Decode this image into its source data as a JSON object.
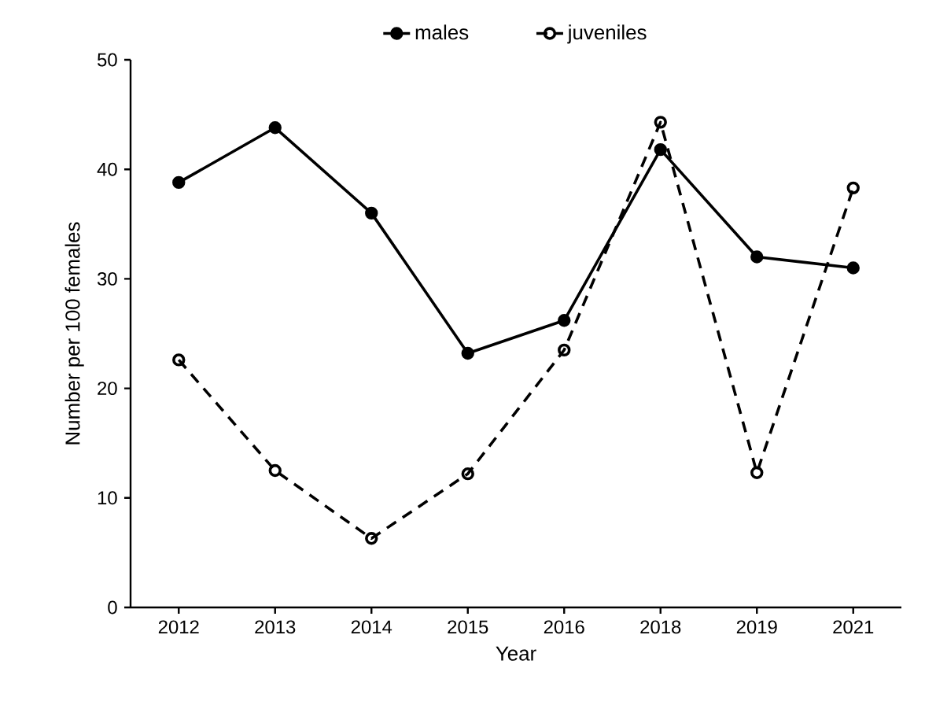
{
  "chart_data": {
    "type": "line",
    "xlabel": "Year",
    "ylabel": "Number per 100 females",
    "categories": [
      "2012",
      "2013",
      "2014",
      "2015",
      "2016",
      "2018",
      "2019",
      "2021"
    ],
    "series": [
      {
        "name": "males",
        "color": "#000000",
        "marker": "circle",
        "line_style": "solid",
        "values": [
          38.8,
          43.8,
          36,
          23.2,
          26.2,
          41.8,
          32,
          31
        ]
      },
      {
        "name": "juveniles",
        "color": "#000000",
        "marker": "open circle",
        "line_style": "dashed",
        "values": [
          22.6,
          12.5,
          6.3,
          12.2,
          23.5,
          44.3,
          12.3,
          38.3
        ]
      }
    ],
    "ylim": [
      0,
      50
    ],
    "yticks": [
      0,
      10,
      20,
      30,
      40,
      50
    ],
    "grid": false,
    "legend": "top"
  }
}
